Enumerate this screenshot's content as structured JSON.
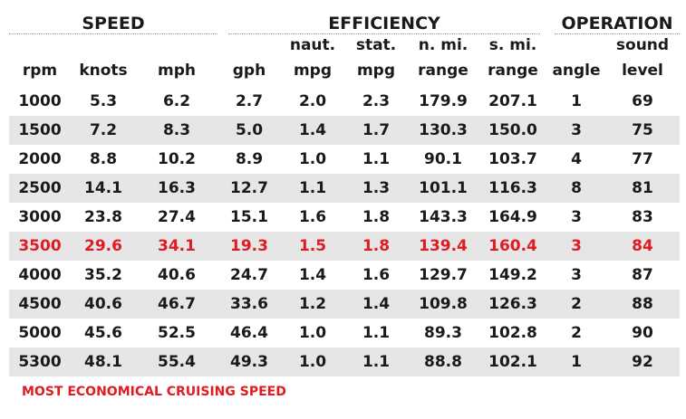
{
  "groups": {
    "speed": "SPEED",
    "efficiency": "EFFICIENCY",
    "operation": "OPERATION"
  },
  "headers": {
    "rpm": [
      "",
      "rpm"
    ],
    "knots": [
      "",
      "knots"
    ],
    "mph": [
      "",
      "mph"
    ],
    "gph": [
      "",
      "gph"
    ],
    "naut_mpg": [
      "naut.",
      "mpg"
    ],
    "stat_mpg": [
      "stat.",
      "mpg"
    ],
    "nmi_range": [
      "n. mi.",
      "range"
    ],
    "smi_range": [
      "s. mi.",
      "range"
    ],
    "angle": [
      "",
      "angle"
    ],
    "sound": [
      "sound",
      "level"
    ]
  },
  "rows": [
    [
      "1000",
      "5.3",
      "6.2",
      "2.7",
      "2.0",
      "2.3",
      "179.9",
      "207.1",
      "1",
      "69"
    ],
    [
      "1500",
      "7.2",
      "8.3",
      "5.0",
      "1.4",
      "1.7",
      "130.3",
      "150.0",
      "3",
      "75"
    ],
    [
      "2000",
      "8.8",
      "10.2",
      "8.9",
      "1.0",
      "1.1",
      "90.1",
      "103.7",
      "4",
      "77"
    ],
    [
      "2500",
      "14.1",
      "16.3",
      "12.7",
      "1.1",
      "1.3",
      "101.1",
      "116.3",
      "8",
      "81"
    ],
    [
      "3000",
      "23.8",
      "27.4",
      "15.1",
      "1.6",
      "1.8",
      "143.3",
      "164.9",
      "3",
      "83"
    ],
    [
      "3500",
      "29.6",
      "34.1",
      "19.3",
      "1.5",
      "1.8",
      "139.4",
      "160.4",
      "3",
      "84"
    ],
    [
      "4000",
      "35.2",
      "40.6",
      "24.7",
      "1.4",
      "1.6",
      "129.7",
      "149.2",
      "3",
      "87"
    ],
    [
      "4500",
      "40.6",
      "46.7",
      "33.6",
      "1.2",
      "1.4",
      "109.8",
      "126.3",
      "2",
      "88"
    ],
    [
      "5000",
      "45.6",
      "52.5",
      "46.4",
      "1.0",
      "1.1",
      "89.3",
      "102.8",
      "2",
      "90"
    ],
    [
      "5300",
      "48.1",
      "55.4",
      "49.3",
      "1.0",
      "1.1",
      "88.8",
      "102.1",
      "1",
      "92"
    ]
  ],
  "highlight_row_index": 5,
  "highlight_color": "#e11b22",
  "note": "MOST ECONOMICAL CRUISING SPEED"
}
